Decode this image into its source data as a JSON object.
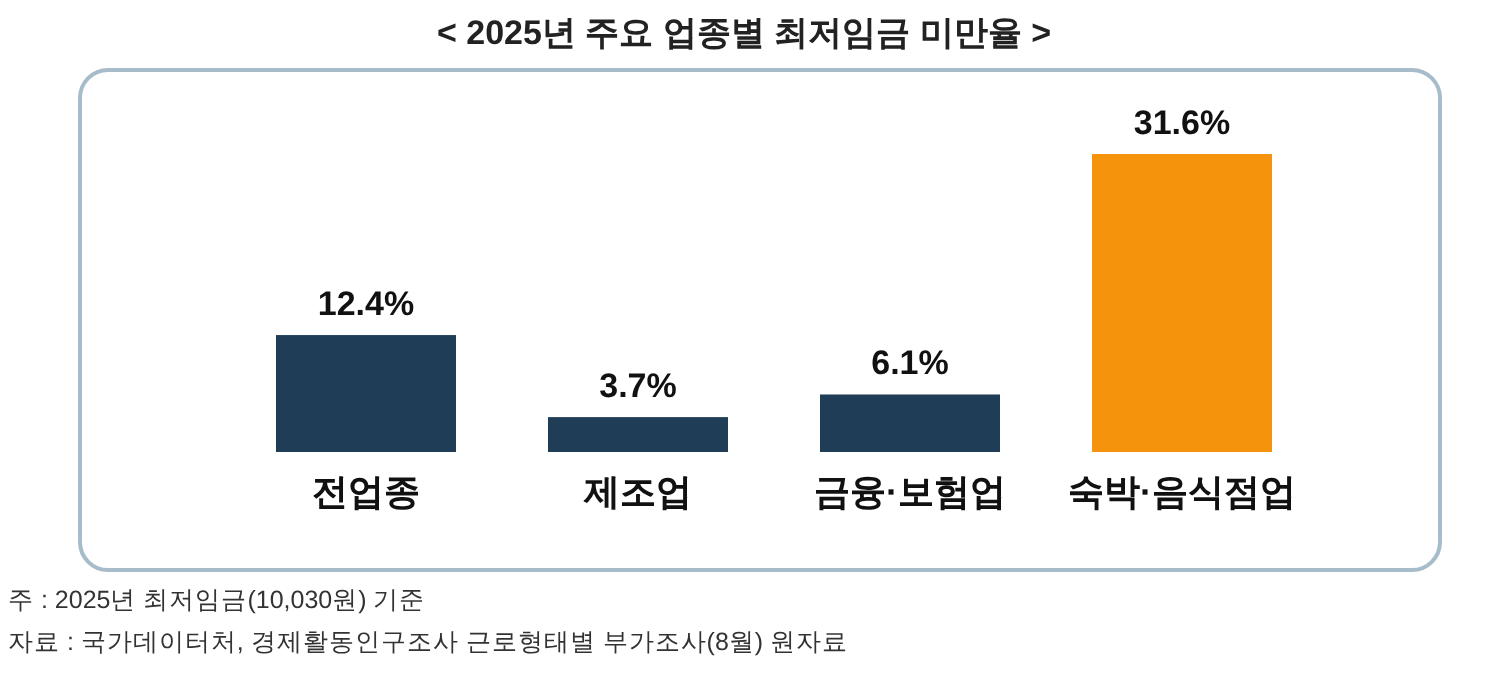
{
  "chart_data": {
    "type": "bar",
    "title": "< 2025년 주요 업종별 최저임금 미만율 >",
    "categories": [
      "전업종",
      "제조업",
      "금융·보험업",
      "숙박·음식점업"
    ],
    "values": [
      12.4,
      3.7,
      6.1,
      31.6
    ],
    "colors": [
      "#1f3d57",
      "#1f3d57",
      "#1f3d57",
      "#f5940c"
    ],
    "value_labels": [
      "12.4%",
      "3.7%",
      "6.1%",
      "31.6%"
    ],
    "annotations": [
      "주 : 2025년 최저임금(10,030원) 기준",
      "자료 : 국가데이터처, 경제활동인구조사 근로형태별 부가조사(8월) 원자료"
    ]
  }
}
